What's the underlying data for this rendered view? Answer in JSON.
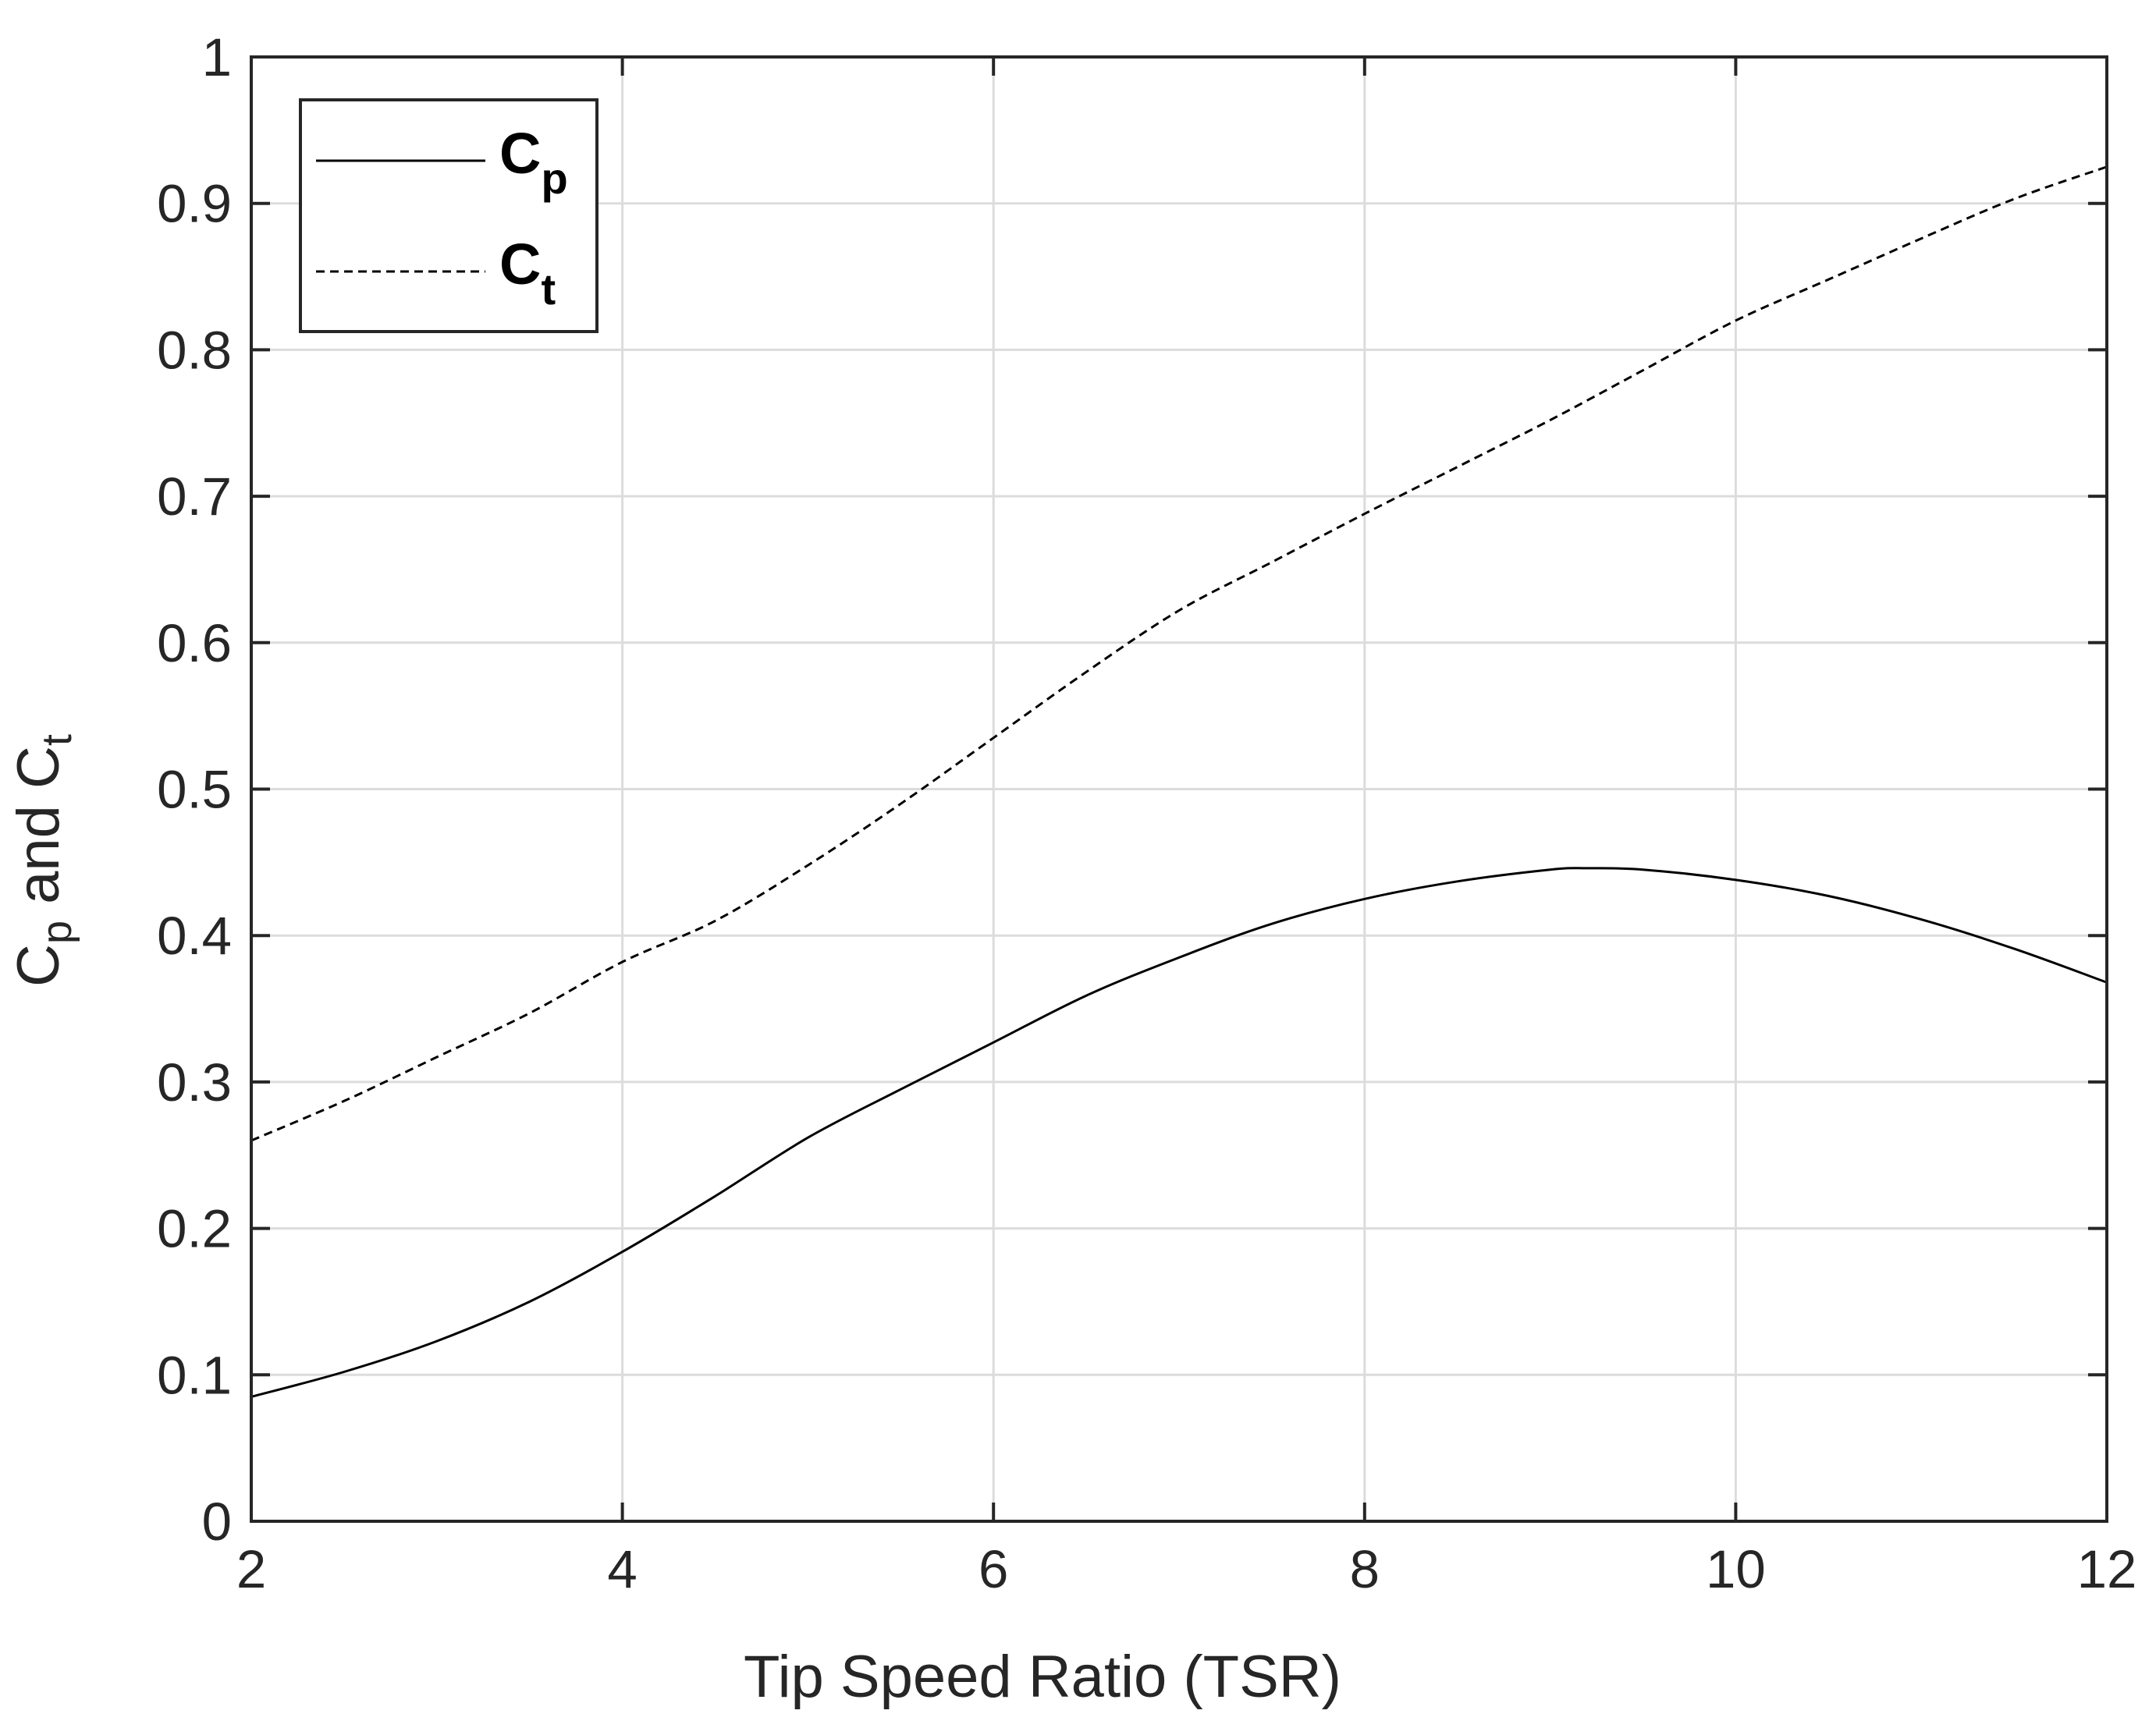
{
  "chart_data": {
    "type": "line",
    "xlabel": "Tip Speed Ratio (TSR)",
    "ylabel": {
      "main": "C",
      "sub_p": "p",
      "mid": " and C",
      "sub_t": "t"
    },
    "xlim": [
      2,
      12
    ],
    "ylim": [
      0,
      1
    ],
    "xticks": [
      "2",
      "4",
      "6",
      "8",
      "10",
      "12"
    ],
    "yticks": [
      "0",
      "0.1",
      "0.2",
      "0.3",
      "0.4",
      "0.5",
      "0.6",
      "0.7",
      "0.8",
      "0.9",
      "1"
    ],
    "grid": true,
    "legend_placement": "top-left",
    "series": [
      {
        "name": "Cp",
        "legend_main": "C",
        "legend_sub": "p",
        "style": "solid",
        "color": "#000000",
        "x": [
          2,
          2.5,
          3,
          3.5,
          4,
          4.5,
          5,
          5.5,
          6,
          6.5,
          7,
          7.5,
          8,
          8.5,
          9,
          9.2,
          9.5,
          10,
          10.5,
          11,
          11.5,
          12
        ],
        "y": [
          0.085,
          0.102,
          0.123,
          0.15,
          0.184,
          0.222,
          0.262,
          0.295,
          0.327,
          0.359,
          0.385,
          0.408,
          0.425,
          0.437,
          0.445,
          0.446,
          0.445,
          0.438,
          0.427,
          0.411,
          0.391,
          0.368
        ]
      },
      {
        "name": "Ct",
        "legend_main": "C",
        "legend_sub": "t",
        "style": "dashed",
        "color": "#000000",
        "x": [
          2,
          2.5,
          3,
          3.5,
          4,
          4.5,
          5,
          5.5,
          6,
          6.5,
          7,
          7.5,
          8,
          8.5,
          9,
          9.5,
          10,
          10.5,
          11,
          11.5,
          12
        ],
        "y": [
          0.26,
          0.287,
          0.317,
          0.347,
          0.382,
          0.41,
          0.448,
          0.49,
          0.535,
          0.58,
          0.622,
          0.655,
          0.688,
          0.72,
          0.752,
          0.786,
          0.82,
          0.848,
          0.876,
          0.903,
          0.925
        ]
      }
    ]
  }
}
